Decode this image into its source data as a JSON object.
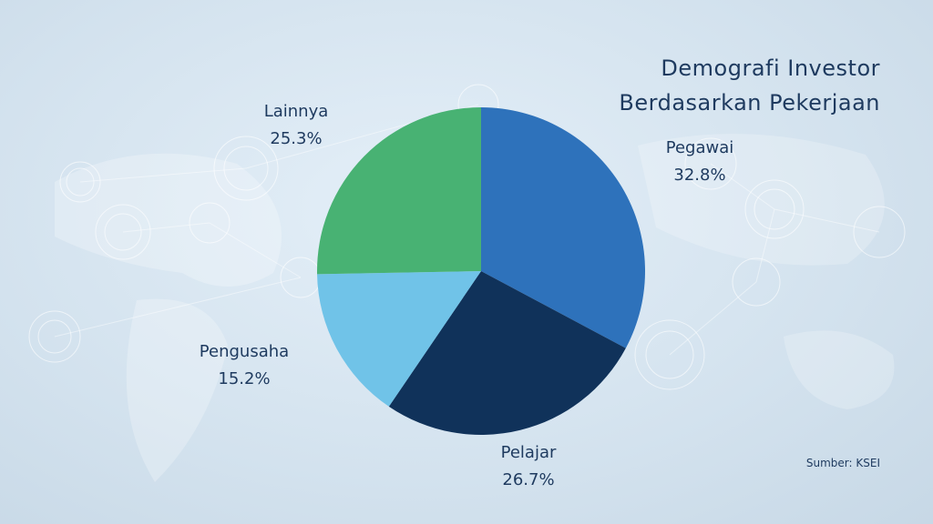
{
  "chart_data": {
    "type": "pie",
    "title": "Demografi Investor Berdasarkan Pekerjaan",
    "source": "Sumber: KSEI",
    "categories": [
      "Pegawai",
      "Pelajar",
      "Pengusaha",
      "Lainnya"
    ],
    "values": [
      32.8,
      26.7,
      15.2,
      25.3
    ],
    "value_labels": [
      "32.8%",
      "26.7%",
      "15.2%",
      "25.3%"
    ],
    "colors": [
      "#2e72bb",
      "#10325a",
      "#70c3e8",
      "#48b273"
    ]
  }
}
